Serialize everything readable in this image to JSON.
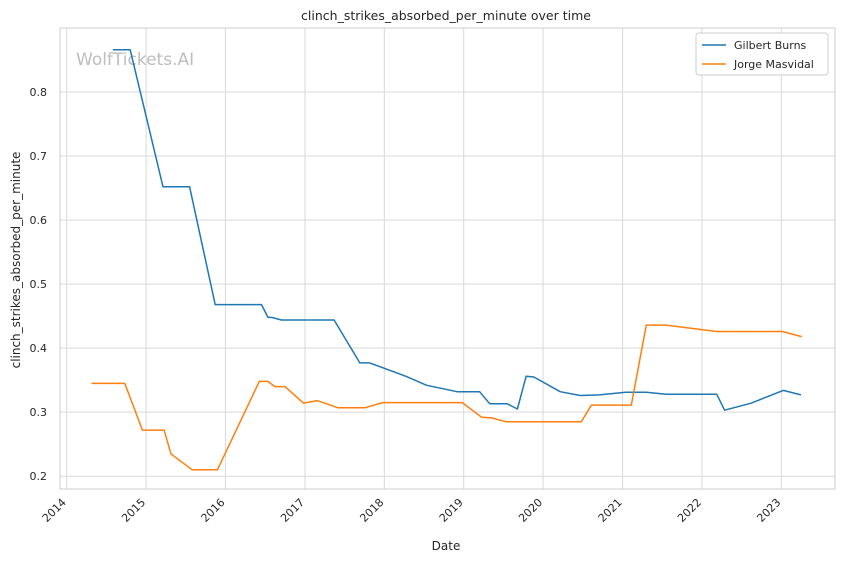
{
  "chart_data": {
    "type": "line",
    "title": "clinch_strikes_absorbed_per_minute over time",
    "xlabel": "Date",
    "ylabel": "clinch_strikes_absorbed_per_minute",
    "watermark": "WolfTickets.AI",
    "xlim": [
      "2013-12-01",
      "2023-09-05"
    ],
    "ylim": [
      0.18,
      0.9
    ],
    "x_ticks": [
      "2014",
      "2015",
      "2016",
      "2017",
      "2018",
      "2019",
      "2020",
      "2021",
      "2022",
      "2023"
    ],
    "y_ticks": [
      "0.2",
      "0.3",
      "0.4",
      "0.5",
      "0.6",
      "0.7",
      "0.8"
    ],
    "grid": true,
    "legend_position": "top-right",
    "series": [
      {
        "name": "Gilbert Burns",
        "color": "#1f77b4",
        "points": [
          [
            "2014-08-01",
            0.866
          ],
          [
            "2014-10-20",
            0.866
          ],
          [
            "2015-03-20",
            0.652
          ],
          [
            "2015-07-20",
            0.652
          ],
          [
            "2015-11-15",
            0.468
          ],
          [
            "2016-06-15",
            0.468
          ],
          [
            "2016-07-15",
            0.448
          ],
          [
            "2016-08-01",
            0.448
          ],
          [
            "2016-09-15",
            0.444
          ],
          [
            "2017-05-15",
            0.444
          ],
          [
            "2017-09-10",
            0.377
          ],
          [
            "2017-10-25",
            0.377
          ],
          [
            "2018-04-10",
            0.356
          ],
          [
            "2018-07-15",
            0.342
          ],
          [
            "2018-12-01",
            0.332
          ],
          [
            "2019-03-15",
            0.332
          ],
          [
            "2019-05-01",
            0.313
          ],
          [
            "2019-07-20",
            0.313
          ],
          [
            "2019-09-05",
            0.305
          ],
          [
            "2019-10-15",
            0.356
          ],
          [
            "2019-11-20",
            0.355
          ],
          [
            "2020-03-20",
            0.332
          ],
          [
            "2020-06-20",
            0.326
          ],
          [
            "2020-09-15",
            0.327
          ],
          [
            "2021-01-15",
            0.331
          ],
          [
            "2021-04-20",
            0.331
          ],
          [
            "2021-07-20",
            0.328
          ],
          [
            "2022-03-10",
            0.328
          ],
          [
            "2022-04-15",
            0.303
          ],
          [
            "2022-08-15",
            0.314
          ],
          [
            "2023-01-10",
            0.334
          ],
          [
            "2023-04-01",
            0.327
          ]
        ]
      },
      {
        "name": "Jorge Masvidal",
        "color": "#ff7f0e",
        "points": [
          [
            "2014-04-25",
            0.345
          ],
          [
            "2014-09-25",
            0.345
          ],
          [
            "2014-12-15",
            0.272
          ],
          [
            "2015-03-25",
            0.272
          ],
          [
            "2015-04-25",
            0.235
          ],
          [
            "2015-08-01",
            0.21
          ],
          [
            "2015-11-25",
            0.21
          ],
          [
            "2016-06-05",
            0.348
          ],
          [
            "2016-07-15",
            0.348
          ],
          [
            "2016-08-15",
            0.34
          ],
          [
            "2016-10-01",
            0.34
          ],
          [
            "2016-12-25",
            0.314
          ],
          [
            "2017-02-25",
            0.318
          ],
          [
            "2017-06-01",
            0.307
          ],
          [
            "2017-10-05",
            0.307
          ],
          [
            "2017-12-25",
            0.315
          ],
          [
            "2018-12-25",
            0.315
          ],
          [
            "2019-03-25",
            0.292
          ],
          [
            "2019-05-10",
            0.291
          ],
          [
            "2019-07-15",
            0.285
          ],
          [
            "2020-06-25",
            0.285
          ],
          [
            "2020-08-10",
            0.311
          ],
          [
            "2021-02-10",
            0.311
          ],
          [
            "2021-04-20",
            0.436
          ],
          [
            "2021-07-20",
            0.436
          ],
          [
            "2022-03-10",
            0.426
          ],
          [
            "2023-01-05",
            0.426
          ],
          [
            "2023-04-05",
            0.418
          ]
        ]
      }
    ]
  }
}
